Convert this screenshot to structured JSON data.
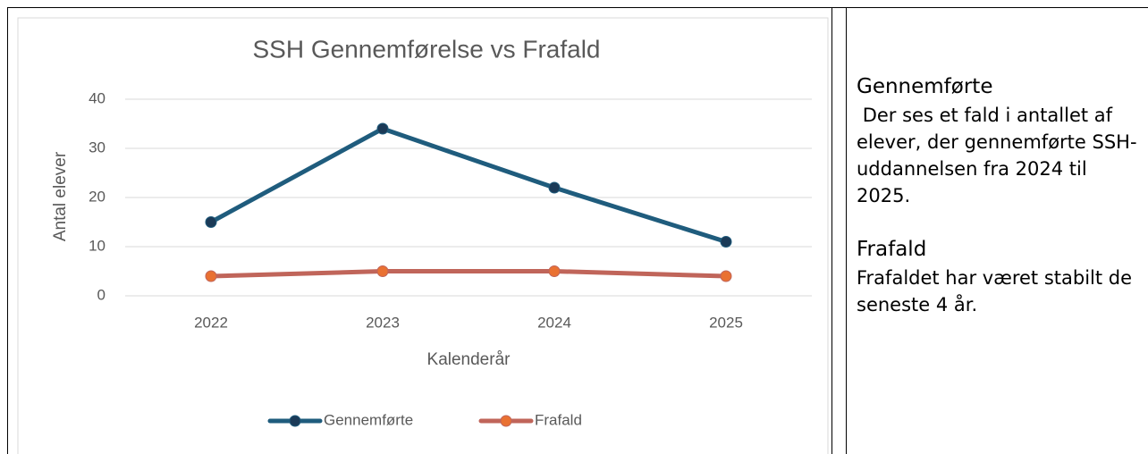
{
  "chart_data": {
    "type": "line",
    "title": "SSH Gennemførelse vs Frafald",
    "x_label": "Kalenderår",
    "y_label": "Antal elever",
    "categories": [
      "2022",
      "2023",
      "2024",
      "2025"
    ],
    "series": [
      {
        "name": "Gennemførte",
        "color": "#1f5c7d",
        "marker_color": "#1b3a57",
        "values": [
          15,
          34,
          22,
          11
        ]
      },
      {
        "name": "Frafald",
        "color": "#c0655a",
        "marker_color": "#e97132",
        "values": [
          4,
          5,
          5,
          4
        ]
      }
    ],
    "ylim": [
      0,
      40
    ],
    "yticks": [
      0,
      10,
      20,
      30,
      40
    ],
    "grid": true,
    "legend": "bottom"
  },
  "notes": {
    "sections": [
      {
        "heading": "Gennemførte",
        "body": " Der ses et fald i antallet af elever, der gennemførte SSH-uddannelsen fra 2024 til 2025."
      },
      {
        "heading": "Frafald",
        "body": "Frafaldet har været stabilt de seneste 4 år."
      }
    ]
  }
}
